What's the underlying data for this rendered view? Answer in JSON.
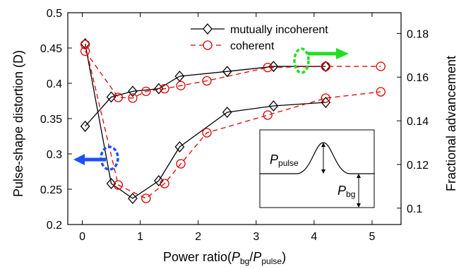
{
  "chart_data": {
    "type": "line",
    "x_axis": {
      "label_main": "Power ratio(",
      "label_p1": "P",
      "label_sub1": "bg",
      "label_slash": "/",
      "label_p2": "P",
      "label_sub2": "pulse",
      "label_close": ")",
      "ticks": [
        0,
        1,
        2,
        3,
        4,
        5
      ],
      "tick_labels": [
        "0",
        "1",
        "2",
        "3",
        "4",
        "5"
      ],
      "range": [
        -0.25,
        5.5
      ]
    },
    "y_left": {
      "label": "Pulse-shape distortion (D)",
      "ticks": [
        0.2,
        0.25,
        0.3,
        0.35,
        0.4,
        0.45,
        0.5
      ],
      "tick_labels": [
        "0.2",
        "0.25",
        "0.3",
        "0.35",
        "0.4",
        "0.45",
        "0.5"
      ],
      "range": [
        0.2,
        0.5
      ]
    },
    "y_right": {
      "label": "Fractional advancement",
      "ticks": [
        0.1,
        0.12,
        0.14,
        0.16,
        0.18
      ],
      "tick_labels": [
        "0.1",
        "0.12",
        "0.14",
        "0.16",
        "0.18"
      ],
      "range": [
        0.0925,
        0.1895
      ]
    },
    "legend": {
      "position": "top-right",
      "entries": [
        "mutually incoherent",
        "coherent"
      ]
    },
    "series": [
      {
        "name": "mutually incoherent",
        "axis": "left",
        "color": "#000000",
        "marker": "diamond",
        "dash": "solid",
        "x": [
          0.05,
          0.5,
          0.87,
          1.32,
          1.68,
          2.5,
          3.3,
          4.2
        ],
        "y": [
          0.456,
          0.258,
          0.237,
          0.262,
          0.31,
          0.359,
          0.368,
          0.373
        ]
      },
      {
        "name": "coherent",
        "axis": "left",
        "color": "#e00000",
        "marker": "circle",
        "dash": "dashed",
        "x": [
          0.05,
          0.62,
          1.1,
          1.42,
          1.7,
          2.15,
          3.2,
          4.2,
          5.15
        ],
        "y": [
          0.455,
          0.256,
          0.237,
          0.258,
          0.286,
          0.33,
          0.355,
          0.379,
          0.388
        ]
      },
      {
        "name": "mutually incoherent",
        "axis": "right",
        "color": "#000000",
        "marker": "diamond",
        "dash": "solid",
        "x": [
          0.05,
          0.5,
          0.87,
          1.32,
          1.68,
          2.5,
          3.3,
          4.2
        ],
        "y": [
          0.1375,
          0.1509,
          0.1535,
          0.1547,
          0.1604,
          0.1626,
          0.1649,
          0.1649
        ]
      },
      {
        "name": "coherent",
        "axis": "right",
        "color": "#e00000",
        "marker": "circle",
        "dash": "dashed",
        "x": [
          0.05,
          0.62,
          0.87,
          1.1,
          1.42,
          1.7,
          2.15,
          3.2,
          4.2,
          5.15
        ],
        "y": [
          0.1719,
          0.1507,
          0.1504,
          0.1535,
          0.1547,
          0.1561,
          0.1583,
          0.1644,
          0.1649,
          0.1649
        ]
      }
    ],
    "annotations": {
      "arrow_left_color": "#1f4fff",
      "arrow_right_color": "#22dd22",
      "inset": {
        "pulse_label": "P",
        "pulse_sub": "pulse",
        "bg_label": "P",
        "bg_sub": "bg"
      }
    }
  }
}
